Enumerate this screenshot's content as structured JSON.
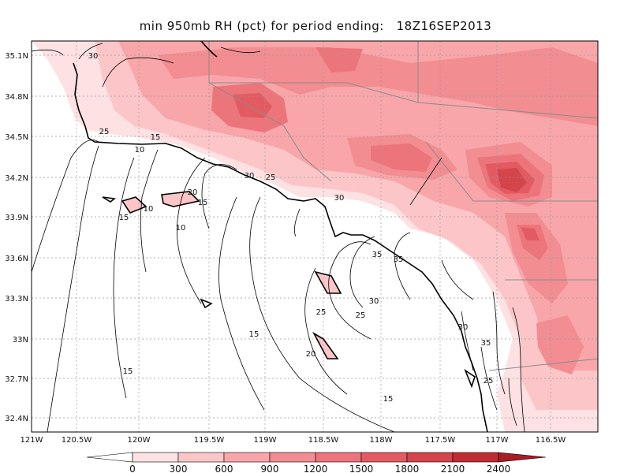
{
  "title": "min 950mb RH (pct) for period ending:   18Z16SEP2013",
  "colors": {
    "level_fills": [
      "#ffffff",
      "#fde1e3",
      "#fcc6c9",
      "#f8a6aa",
      "#f28d92",
      "#ec757b",
      "#e35b62",
      "#d4444b",
      "#c02c33",
      "#a91d24"
    ],
    "grid": "#999999",
    "state_border": "#8a8a8a",
    "coast": "#000000",
    "contour": "#000000"
  },
  "map": {
    "lat_ticks": [
      "35.1N",
      "34.8N",
      "34.5N",
      "34.2N",
      "33.9N",
      "33.6N",
      "33.3N",
      "33N",
      "32.7N",
      "32.4N"
    ],
    "lon_ticks": [
      "121W",
      "120.5W",
      "120W",
      "119.5W",
      "119W",
      "118.5W",
      "118W",
      "117.5W",
      "117W",
      "116.5W"
    ],
    "contour_labels": [
      {
        "text": "30"
      },
      {
        "text": "25"
      },
      {
        "text": "15"
      },
      {
        "text": "10"
      },
      {
        "text": "20"
      },
      {
        "text": "15"
      },
      {
        "text": "10"
      },
      {
        "text": "15"
      },
      {
        "text": "10"
      },
      {
        "text": "30"
      },
      {
        "text": "25"
      },
      {
        "text": "30"
      },
      {
        "text": "35"
      },
      {
        "text": "35"
      },
      {
        "text": "30"
      },
      {
        "text": "25"
      },
      {
        "text": "25"
      },
      {
        "text": "30"
      },
      {
        "text": "35"
      },
      {
        "text": "15"
      },
      {
        "text": "20"
      },
      {
        "text": "15"
      },
      {
        "text": "25"
      },
      {
        "text": "15"
      }
    ]
  },
  "colorbar": {
    "labels": [
      "0",
      "300",
      "600",
      "900",
      "1200",
      "1500",
      "1800",
      "2100",
      "2400"
    ]
  }
}
